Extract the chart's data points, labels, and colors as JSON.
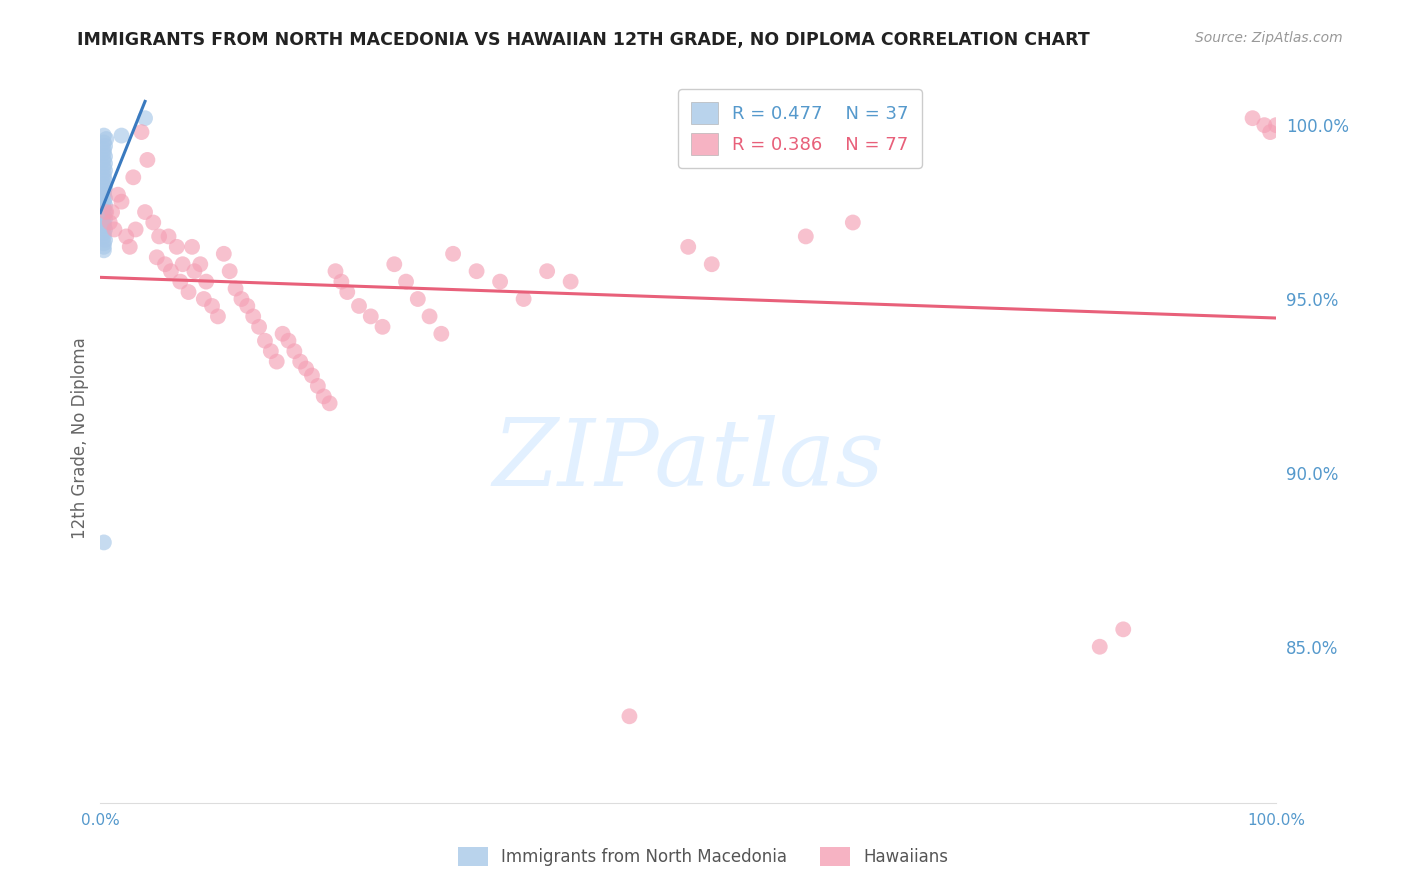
{
  "title": "IMMIGRANTS FROM NORTH MACEDONIA VS HAWAIIAN 12TH GRADE, NO DIPLOMA CORRELATION CHART",
  "source": "Source: ZipAtlas.com",
  "ylabel": "12th Grade, No Diploma",
  "blue_R": 0.477,
  "blue_N": 37,
  "pink_R": 0.386,
  "pink_N": 77,
  "legend_label_blue": "Immigrants from North Macedonia",
  "legend_label_pink": "Hawaiians",
  "blue_color": "#a8c8e8",
  "pink_color": "#f4a0b5",
  "blue_line_color": "#3a7abf",
  "pink_line_color": "#e8607a",
  "background_color": "#ffffff",
  "grid_color": "#cccccc",
  "right_axis_color": "#5599cc",
  "watermark_color": "#ddeeff",
  "watermark": "ZIPatlas",
  "blue_scatter_x": [
    0.038,
    0.018,
    0.003,
    0.005,
    0.003,
    0.004,
    0.003,
    0.003,
    0.004,
    0.003,
    0.004,
    0.003,
    0.004,
    0.003,
    0.003,
    0.004,
    0.003,
    0.004,
    0.003,
    0.003,
    0.004,
    0.003,
    0.004,
    0.003,
    0.004,
    0.003,
    0.004,
    0.003,
    0.003,
    0.004,
    0.003,
    0.003,
    0.004,
    0.003,
    0.003,
    0.003,
    0.003
  ],
  "blue_scatter_y": [
    1.002,
    0.997,
    0.997,
    0.996,
    0.995,
    0.994,
    0.993,
    0.992,
    0.991,
    0.99,
    0.989,
    0.988,
    0.987,
    0.986,
    0.985,
    0.984,
    0.983,
    0.982,
    0.981,
    0.98,
    0.979,
    0.978,
    0.977,
    0.976,
    0.975,
    0.974,
    0.973,
    0.972,
    0.971,
    0.97,
    0.969,
    0.968,
    0.967,
    0.966,
    0.965,
    0.964,
    0.88
  ],
  "pink_scatter_x": [
    0.005,
    0.01,
    0.008,
    0.012,
    0.022,
    0.018,
    0.015,
    0.025,
    0.03,
    0.028,
    0.035,
    0.04,
    0.038,
    0.045,
    0.05,
    0.048,
    0.055,
    0.06,
    0.058,
    0.065,
    0.07,
    0.068,
    0.075,
    0.08,
    0.078,
    0.085,
    0.09,
    0.088,
    0.095,
    0.1,
    0.105,
    0.11,
    0.115,
    0.12,
    0.125,
    0.13,
    0.135,
    0.14,
    0.145,
    0.15,
    0.155,
    0.16,
    0.165,
    0.17,
    0.175,
    0.18,
    0.185,
    0.19,
    0.195,
    0.2,
    0.205,
    0.21,
    0.22,
    0.23,
    0.24,
    0.25,
    0.26,
    0.27,
    0.28,
    0.29,
    0.3,
    0.32,
    0.34,
    0.36,
    0.38,
    0.4,
    0.5,
    0.52,
    0.6,
    0.64,
    0.85,
    0.87,
    0.98,
    0.99,
    0.995,
    1.0,
    0.45
  ],
  "pink_scatter_y": [
    0.975,
    0.975,
    0.972,
    0.97,
    0.968,
    0.978,
    0.98,
    0.965,
    0.97,
    0.985,
    0.998,
    0.99,
    0.975,
    0.972,
    0.968,
    0.962,
    0.96,
    0.958,
    0.968,
    0.965,
    0.96,
    0.955,
    0.952,
    0.958,
    0.965,
    0.96,
    0.955,
    0.95,
    0.948,
    0.945,
    0.963,
    0.958,
    0.953,
    0.95,
    0.948,
    0.945,
    0.942,
    0.938,
    0.935,
    0.932,
    0.94,
    0.938,
    0.935,
    0.932,
    0.93,
    0.928,
    0.925,
    0.922,
    0.92,
    0.958,
    0.955,
    0.952,
    0.948,
    0.945,
    0.942,
    0.96,
    0.955,
    0.95,
    0.945,
    0.94,
    0.963,
    0.958,
    0.955,
    0.95,
    0.958,
    0.955,
    0.965,
    0.96,
    0.968,
    0.972,
    0.85,
    0.855,
    1.002,
    1.0,
    0.998,
    1.0,
    0.83
  ],
  "xlim_min": 0.0,
  "xlim_max": 1.0,
  "ylim_min": 0.805,
  "ylim_max": 1.015,
  "ytick_positions": [
    1.0,
    0.95,
    0.9,
    0.85
  ],
  "ytick_labels": [
    "100.0%",
    "95.0%",
    "90.0%",
    "85.0%"
  ],
  "xtick_positions": [
    0.0,
    0.2,
    0.4,
    0.6,
    0.8,
    1.0
  ],
  "xtick_labels": [
    "0.0%",
    "",
    "",
    "",
    "",
    "100.0%"
  ]
}
